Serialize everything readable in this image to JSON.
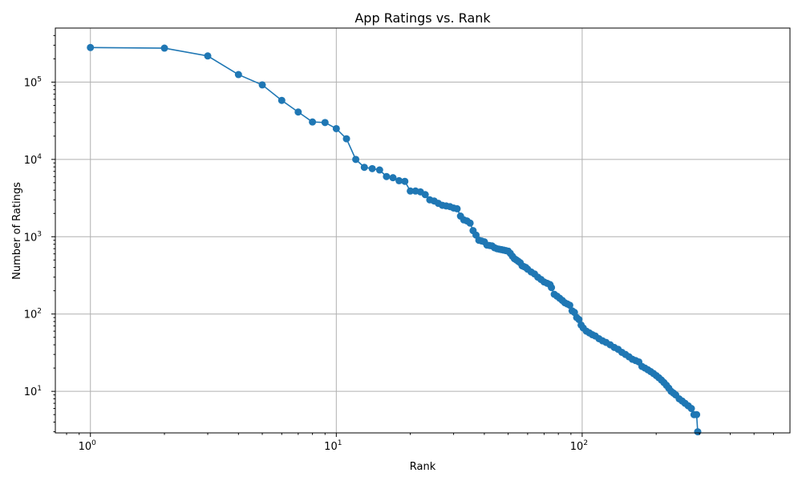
{
  "chart_data": {
    "type": "line",
    "title": "App Ratings vs. Rank",
    "xlabel": "Rank",
    "ylabel": "Number of Ratings",
    "xscale": "log",
    "yscale": "log",
    "xlim": [
      0.72,
      700
    ],
    "ylim": [
      2.9,
      500000
    ],
    "grid": true,
    "series_color": "#1f77b4",
    "x_ticks": [
      {
        "base": "10",
        "exp": "0",
        "value": 1
      },
      {
        "base": "10",
        "exp": "1",
        "value": 10
      },
      {
        "base": "10",
        "exp": "2",
        "value": 100
      }
    ],
    "y_ticks": [
      {
        "base": "10",
        "exp": "1",
        "value": 10
      },
      {
        "base": "10",
        "exp": "2",
        "value": 100
      },
      {
        "base": "10",
        "exp": "3",
        "value": 1000
      },
      {
        "base": "10",
        "exp": "4",
        "value": 10000
      },
      {
        "base": "10",
        "exp": "5",
        "value": 100000
      }
    ],
    "points": [
      [
        1,
        280000
      ],
      [
        2,
        275000
      ],
      [
        3,
        218000
      ],
      [
        4,
        125000
      ],
      [
        5,
        92000
      ],
      [
        6,
        58000
      ],
      [
        7,
        41000
      ],
      [
        8,
        30500
      ],
      [
        9,
        30000
      ],
      [
        10,
        25000
      ],
      [
        11,
        18500
      ],
      [
        12,
        10000
      ],
      [
        13,
        7900
      ],
      [
        14,
        7600
      ],
      [
        15,
        7300
      ],
      [
        16,
        6000
      ],
      [
        17,
        5800
      ],
      [
        18,
        5300
      ],
      [
        19,
        5200
      ],
      [
        20,
        3900
      ],
      [
        21,
        3900
      ],
      [
        22,
        3800
      ],
      [
        23,
        3500
      ],
      [
        24,
        3000
      ],
      [
        25,
        2900
      ],
      [
        26,
        2700
      ],
      [
        27,
        2550
      ],
      [
        28,
        2500
      ],
      [
        29,
        2450
      ],
      [
        30,
        2350
      ],
      [
        31,
        2300
      ],
      [
        32,
        1850
      ],
      [
        33,
        1650
      ],
      [
        34,
        1600
      ],
      [
        35,
        1500
      ],
      [
        36,
        1200
      ],
      [
        37,
        1050
      ],
      [
        38,
        900
      ],
      [
        39,
        880
      ],
      [
        40,
        860
      ],
      [
        41,
        780
      ],
      [
        42,
        770
      ],
      [
        43,
        760
      ],
      [
        44,
        720
      ],
      [
        45,
        700
      ],
      [
        46,
        690
      ],
      [
        47,
        680
      ],
      [
        48,
        670
      ],
      [
        49,
        660
      ],
      [
        50,
        650
      ],
      [
        51,
        610
      ],
      [
        52,
        560
      ],
      [
        53,
        520
      ],
      [
        54,
        500
      ],
      [
        55,
        480
      ],
      [
        56,
        460
      ],
      [
        57,
        420
      ],
      [
        58,
        410
      ],
      [
        59,
        400
      ],
      [
        60,
        380
      ],
      [
        62,
        350
      ],
      [
        64,
        330
      ],
      [
        66,
        300
      ],
      [
        68,
        280
      ],
      [
        70,
        260
      ],
      [
        72,
        250
      ],
      [
        74,
        240
      ],
      [
        75,
        220
      ],
      [
        77,
        180
      ],
      [
        79,
        170
      ],
      [
        81,
        160
      ],
      [
        83,
        150
      ],
      [
        85,
        140
      ],
      [
        87,
        135
      ],
      [
        89,
        130
      ],
      [
        91,
        110
      ],
      [
        93,
        105
      ],
      [
        95,
        90
      ],
      [
        97,
        85
      ],
      [
        99,
        72
      ],
      [
        101,
        66
      ],
      [
        104,
        60
      ],
      [
        107,
        57
      ],
      [
        110,
        54
      ],
      [
        113,
        52
      ],
      [
        117,
        48
      ],
      [
        121,
        45
      ],
      [
        125,
        43
      ],
      [
        130,
        40
      ],
      [
        135,
        37
      ],
      [
        140,
        35
      ],
      [
        145,
        32
      ],
      [
        150,
        30
      ],
      [
        155,
        28
      ],
      [
        160,
        26
      ],
      [
        165,
        25
      ],
      [
        170,
        24
      ],
      [
        175,
        21
      ],
      [
        180,
        20
      ],
      [
        185,
        19
      ],
      [
        190,
        18
      ],
      [
        195,
        17
      ],
      [
        200,
        16
      ],
      [
        205,
        15
      ],
      [
        210,
        14
      ],
      [
        215,
        13
      ],
      [
        220,
        12
      ],
      [
        225,
        11
      ],
      [
        230,
        10
      ],
      [
        235,
        9.5
      ],
      [
        240,
        9
      ],
      [
        248,
        8
      ],
      [
        255,
        7.5
      ],
      [
        262,
        7
      ],
      [
        270,
        6.5
      ],
      [
        278,
        6
      ],
      [
        285,
        5
      ],
      [
        292,
        5
      ],
      [
        295,
        3
      ]
    ]
  }
}
